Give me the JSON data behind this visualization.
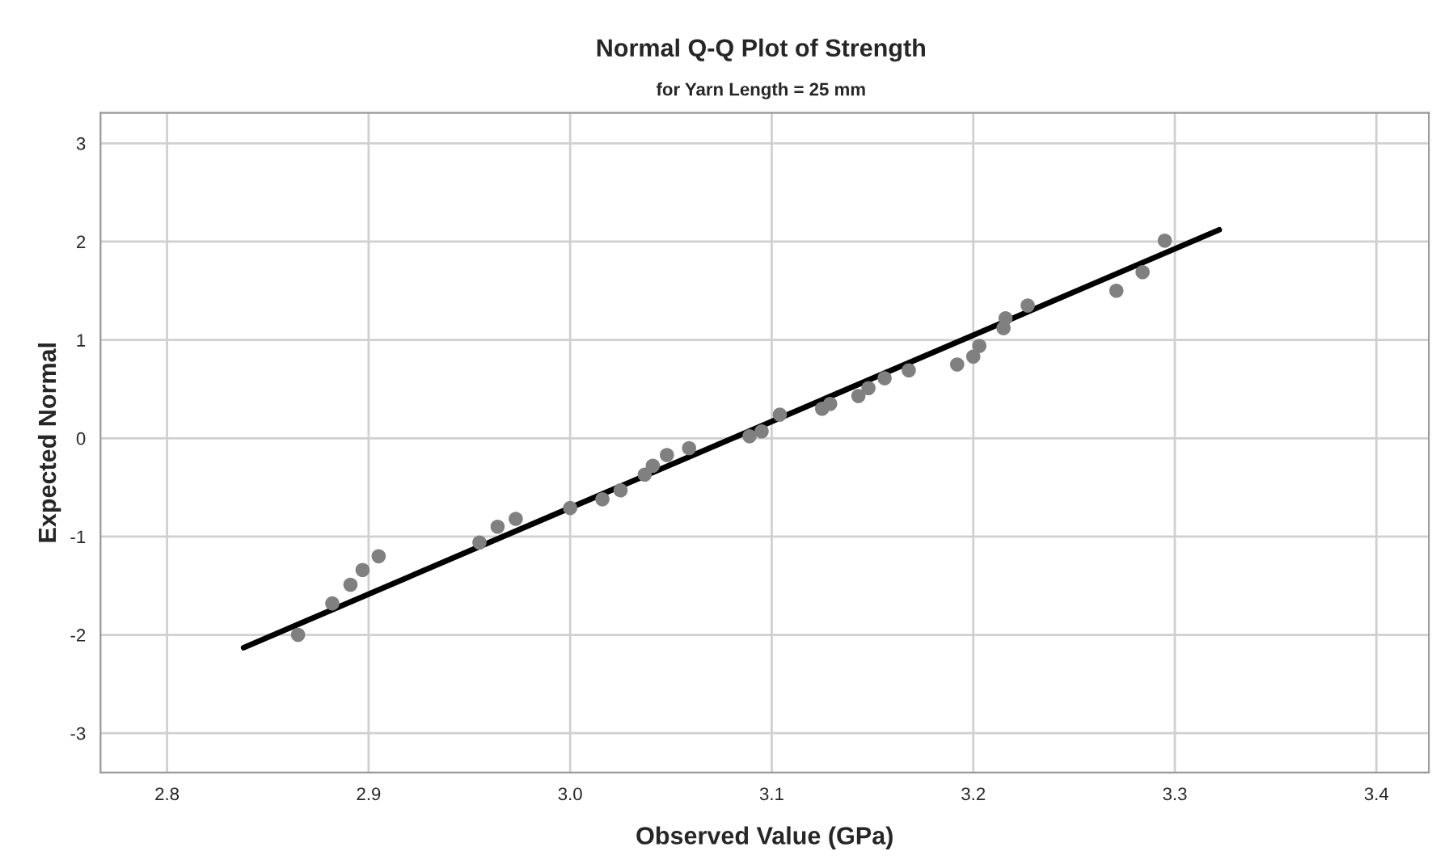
{
  "chart_data": {
    "type": "scatter",
    "title": "Normal Q-Q Plot of Strength",
    "subtitle": "for Yarn Length = 25 mm",
    "xlabel": "Observed Value (GPa)",
    "ylabel": "Expected Normal",
    "series": [
      {
        "color": "#808080",
        "marker": "circle",
        "x": [
          2.865,
          2.882,
          2.891,
          2.897,
          2.905,
          2.955,
          2.964,
          2.973,
          3.0,
          3.016,
          3.025,
          3.037,
          3.041,
          3.048,
          3.059,
          3.089,
          3.095,
          3.104,
          3.125,
          3.129,
          3.143,
          3.148,
          3.156,
          3.168,
          3.192,
          3.2,
          3.203,
          3.215,
          3.216,
          3.227,
          3.271,
          3.284,
          3.295
        ],
        "values": [
          -2.0,
          -1.68,
          -1.49,
          -1.34,
          -1.2,
          -1.06,
          -0.9,
          -0.82,
          -0.71,
          -0.62,
          -0.53,
          -0.37,
          -0.28,
          -0.17,
          -0.1,
          0.02,
          0.07,
          0.24,
          0.3,
          0.35,
          0.43,
          0.51,
          0.61,
          0.69,
          0.75,
          0.83,
          0.94,
          1.12,
          1.22,
          1.35,
          1.5,
          1.69,
          2.01
        ]
      },
      {
        "type": "line",
        "color": "#000000",
        "line_style": "solid",
        "x": [
          2.838,
          3.322
        ],
        "values": [
          -2.13,
          2.12
        ]
      }
    ],
    "xlim": [
      2.767,
      3.426
    ],
    "ylim": [
      -3.4,
      3.31
    ],
    "xticks": [
      2.8,
      2.9,
      {
        "value": 3.0,
        "label": "3.0"
      },
      3.1,
      3.2,
      3.3,
      3.4
    ],
    "yticks": [
      -3,
      -2,
      -1,
      0,
      1,
      2,
      3
    ],
    "grid": true
  }
}
